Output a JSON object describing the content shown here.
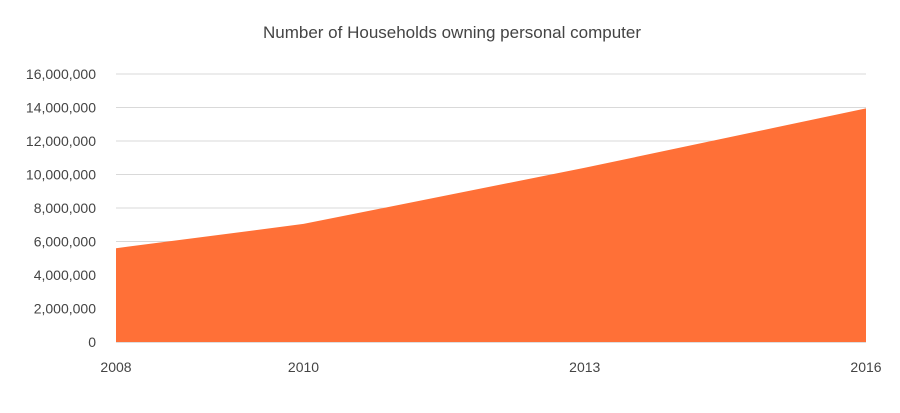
{
  "chart_data": {
    "type": "area",
    "title": "Number of Households owning personal computer",
    "xlabel": "",
    "ylabel": "",
    "x": [
      "2008",
      "2010",
      "2013",
      "2016"
    ],
    "series": [
      {
        "values": [
          5600000,
          7050000,
          10400000,
          13950000
        ],
        "color": "#ff7037"
      }
    ],
    "ylim": [
      0,
      16000000
    ],
    "yticks": [
      0,
      2000000,
      4000000,
      6000000,
      8000000,
      10000000,
      12000000,
      14000000,
      16000000
    ],
    "ytick_labels": [
      "0",
      "2,000,000",
      "4,000,000",
      "6,000,000",
      "8,000,000",
      "10,000,000",
      "12,000,000",
      "14,000,000",
      "16,000,000"
    ],
    "grid": true,
    "legend": "none"
  }
}
